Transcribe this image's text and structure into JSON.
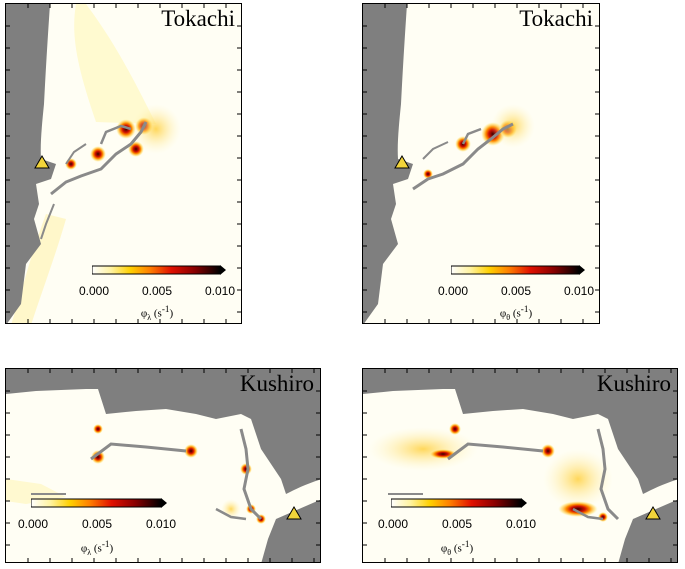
{
  "colors": {
    "land": "#7f7f7f",
    "sea": "#fffef4",
    "breakwater": "#8a8a8a",
    "marker": "#f2d43a"
  },
  "colorbar": {
    "ticks": [
      "0.000",
      "0.005",
      "0.010"
    ],
    "gradient": [
      "#ffffff",
      "#fff3a0",
      "#ffd000",
      "#ff8000",
      "#e01000",
      "#8a0000",
      "#000000"
    ]
  },
  "panels": [
    {
      "title": "Tokachi",
      "unit_symbol": "φ",
      "unit_sub": "λ",
      "unit_rest": " (s",
      "unit_exp": "-1",
      "unit_close": ")",
      "marker_icon": "triangle-marker-icon"
    },
    {
      "title": "Tokachi",
      "unit_symbol": "φ",
      "unit_sub": "θ",
      "unit_rest": " (s",
      "unit_exp": "-1",
      "unit_close": ")",
      "marker_icon": "triangle-marker-icon"
    },
    {
      "title": "Kushiro",
      "unit_symbol": "φ",
      "unit_sub": "λ",
      "unit_rest": " (s",
      "unit_exp": "-1",
      "unit_close": ")",
      "marker_icon": "triangle-marker-icon"
    },
    {
      "title": "Kushiro",
      "unit_symbol": "φ",
      "unit_sub": "θ",
      "unit_rest": " (s",
      "unit_exp": "-1",
      "unit_close": ")",
      "marker_icon": "triangle-marker-icon"
    }
  ]
}
